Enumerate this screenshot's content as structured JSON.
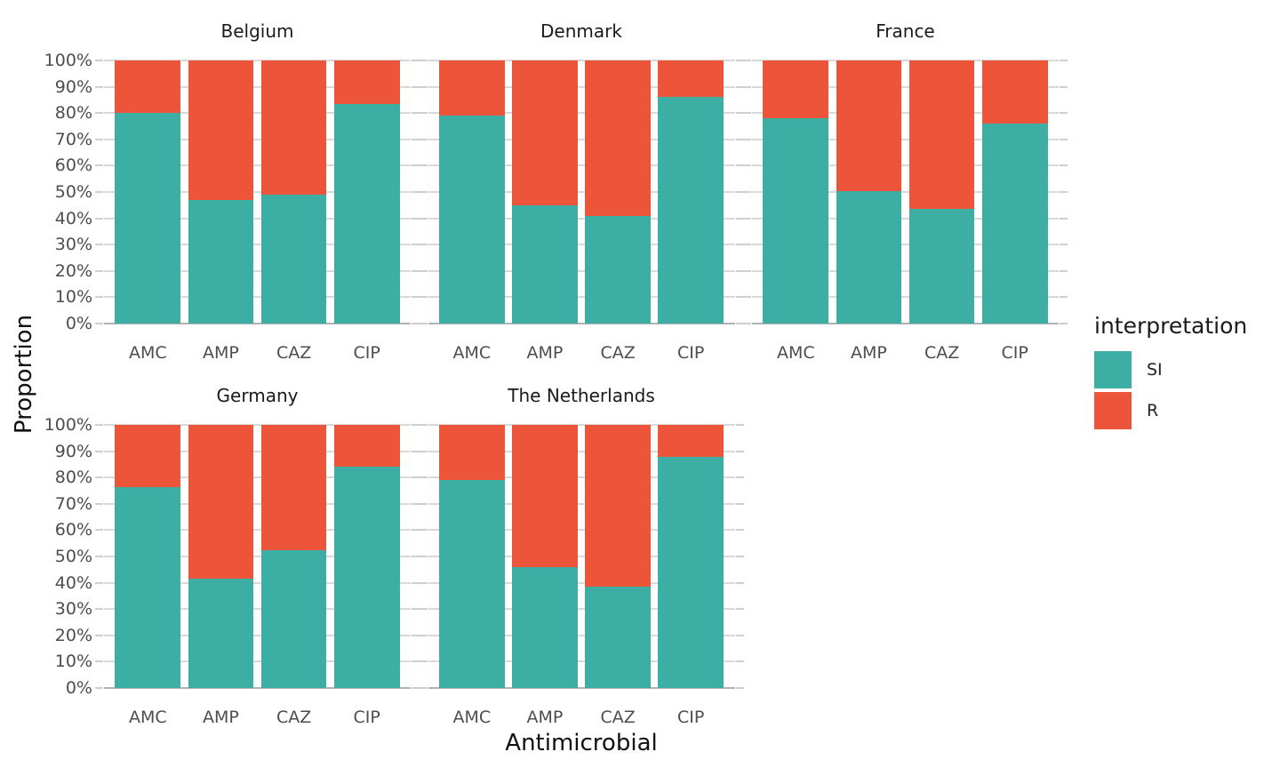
{
  "chart_data": {
    "type": "bar",
    "stacked": true,
    "units": "percent",
    "xlabel": "Antimicrobial",
    "ylabel": "Proportion",
    "ylim": [
      0,
      100
    ],
    "y_tick_labels": [
      "0%",
      "10%",
      "20%",
      "30%",
      "40%",
      "50%",
      "60%",
      "70%",
      "80%",
      "90%",
      "100%"
    ],
    "categories": [
      "AMC",
      "AMP",
      "CAZ",
      "CIP"
    ],
    "grid": "horizontal-major",
    "colors": {
      "SI": "#3CAEA3",
      "R": "#ED553B",
      "gridline": "#d9d9d9",
      "baseline": "#b2b2b2",
      "tick": "#cfcfcf"
    },
    "legend": {
      "title": "interpretation",
      "position": "right",
      "items": [
        {
          "label": "SI",
          "color": "#3CAEA3"
        },
        {
          "label": "R",
          "color": "#ED553B"
        }
      ]
    },
    "facets": [
      {
        "title": "Belgium",
        "series": [
          {
            "name": "SI",
            "values": [
              80,
              47,
              49,
              83.5
            ]
          },
          {
            "name": "R",
            "values": [
              20,
              53,
              51,
              16.5
            ]
          }
        ]
      },
      {
        "title": "Denmark",
        "series": [
          {
            "name": "SI",
            "values": [
              79,
              45,
              41,
              86
            ]
          },
          {
            "name": "R",
            "values": [
              21,
              55,
              59,
              14
            ]
          }
        ]
      },
      {
        "title": "France",
        "series": [
          {
            "name": "SI",
            "values": [
              78,
              50.5,
              43.5,
              76
            ]
          },
          {
            "name": "R",
            "values": [
              22,
              49.5,
              56.5,
              24
            ]
          }
        ]
      },
      {
        "title": "Germany",
        "series": [
          {
            "name": "SI",
            "values": [
              76.5,
              41.5,
              52.5,
              84
            ]
          },
          {
            "name": "R",
            "values": [
              23.5,
              58.5,
              47.5,
              16
            ]
          }
        ]
      },
      {
        "title": "The Netherlands",
        "series": [
          {
            "name": "SI",
            "values": [
              79,
              46,
              38.5,
              88
            ]
          },
          {
            "name": "R",
            "values": [
              21,
              54,
              61.5,
              12
            ]
          }
        ]
      }
    ]
  }
}
